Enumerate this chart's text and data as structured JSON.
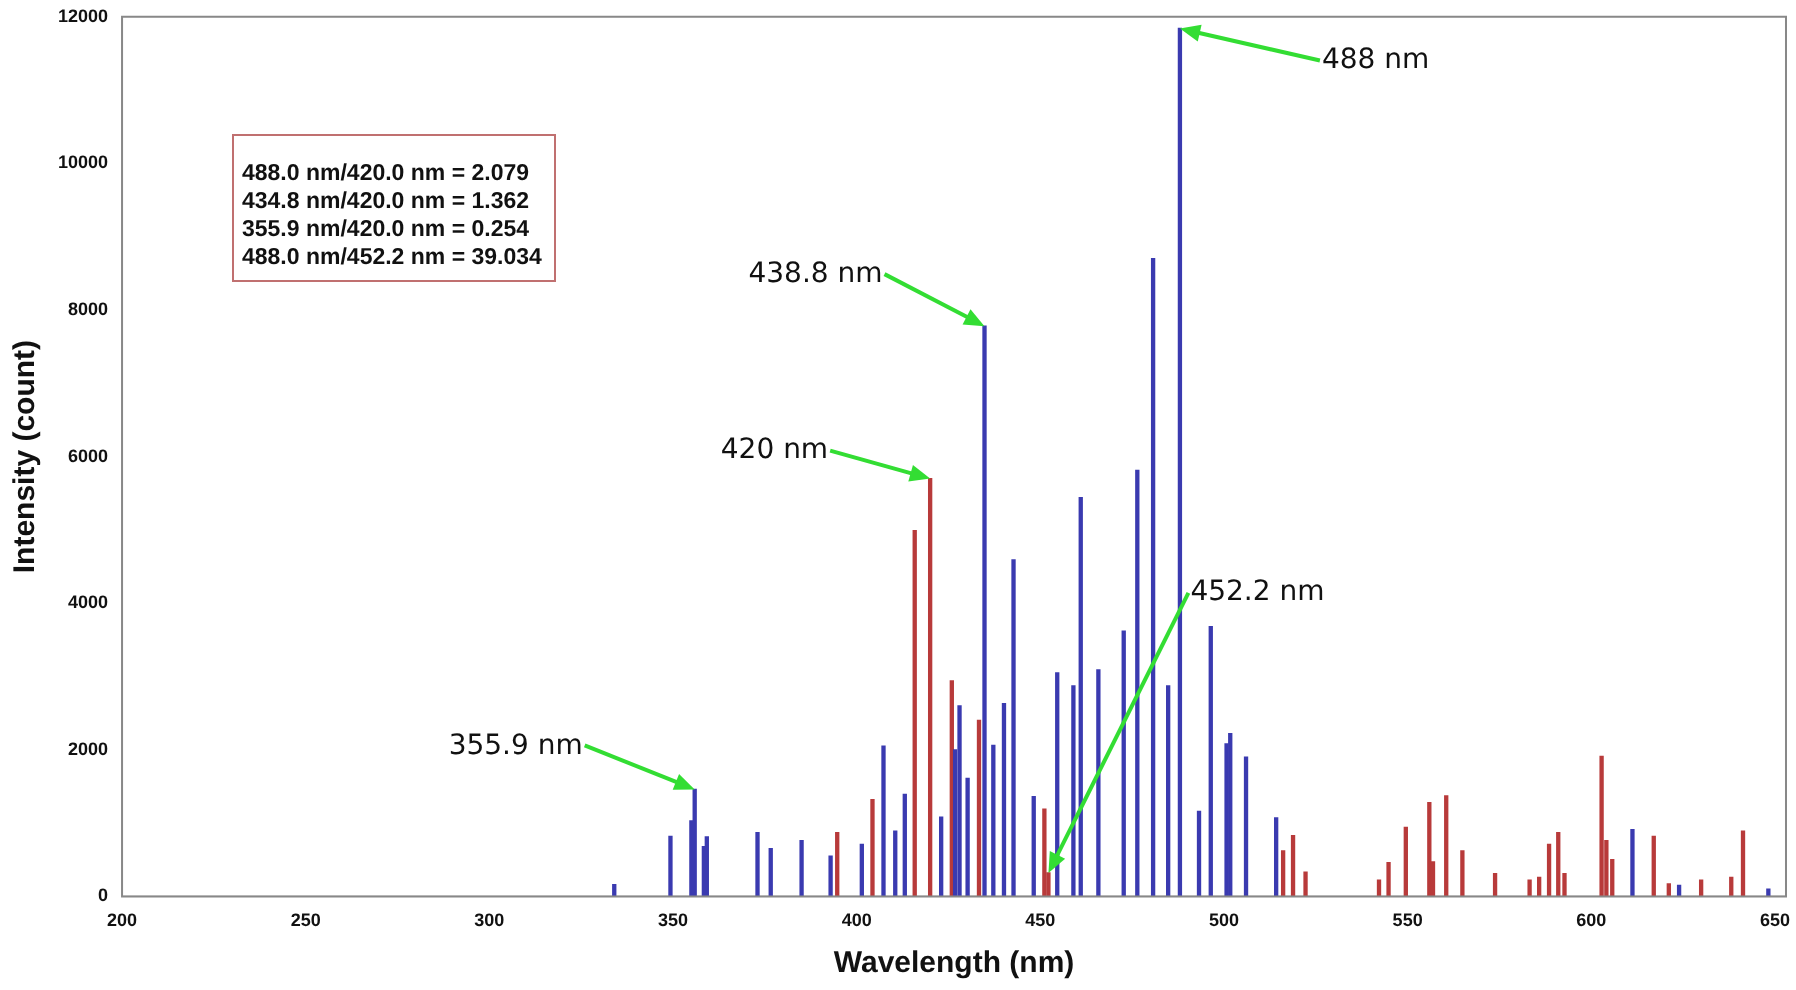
{
  "chart_data": {
    "type": "bar",
    "xlabel": "Wavelength (nm)",
    "ylabel": "Intensity (count)",
    "xlim": [
      200,
      653
    ],
    "xticks": [
      200,
      250,
      300,
      350,
      400,
      450,
      500,
      550,
      600,
      650
    ],
    "ylim": [
      0,
      12000
    ],
    "yticks": [
      0,
      2000,
      4000,
      6000,
      8000,
      10000,
      12000
    ],
    "grid": false,
    "legend": false,
    "series": [
      {
        "color": "#3a3ab0",
        "x": [
          334,
          349.3,
          355,
          355.9,
          358.4,
          359.2,
          373,
          376.6,
          385,
          392.9,
          401.4,
          407.3,
          410.5,
          413.1,
          423,
          426.8,
          428,
          430.2,
          434.8,
          437.2,
          440.1,
          442.7,
          448.2,
          454.6,
          459,
          461,
          465.8,
          472.7,
          473.4,
          476.4,
          480.7,
          484.8,
          488,
          493.2,
          496.4,
          500.7,
          501.7,
          506,
          514.2,
          611.2,
          623.9,
          648.2
        ],
        "values": [
          160,
          820,
          1030,
          1460,
          680,
          810,
          870,
          650,
          760,
          550,
          710,
          2050,
          890,
          1390,
          1080,
          2000,
          2600,
          1610,
          7780,
          2060,
          2630,
          4590,
          1360,
          3050,
          2870,
          5440,
          3090,
          3620,
          null,
          5810,
          8700,
          2870,
          11840,
          1160,
          3680,
          2080,
          2220,
          1900,
          1070,
          910,
          150,
          100
        ]
      },
      {
        "color": "#b83a3a",
        "x": [
          394.7,
          404.3,
          415.8,
          420,
          425.9,
          433.3,
          451.1,
          452.2,
          516.1,
          518.8,
          522.2,
          542.2,
          544.8,
          549.5,
          555.9,
          556.9,
          560.5,
          564.9,
          573.8,
          583.2,
          585.8,
          588.5,
          591,
          592.7,
          602.8,
          604.1,
          605.7,
          617,
          621.1,
          629.9,
          638.1,
          641.3
        ],
        "values": [
          870,
          1320,
          4990,
          5700,
          2940,
          2400,
          1190,
          320,
          620,
          830,
          330,
          220,
          460,
          940,
          1280,
          470,
          1370,
          620,
          310,
          220,
          260,
          710,
          870,
          310,
          1910,
          760,
          500,
          820,
          170,
          220,
          260,
          890
        ]
      }
    ],
    "annotations": [
      "488.0 nm/420.0 nm = 2.079",
      "434.8 nm/420.0 nm = 1.362",
      "355.9 nm/420.0 nm = 0.254",
      "488.0 nm/452.2 nm = 39.034",
      {
        "text": "488 nm",
        "x": 488,
        "y": 11840
      },
      {
        "text": "438.8 nm",
        "x": 434.8,
        "y": 7780
      },
      {
        "text": "420 nm",
        "x": 420,
        "y": 5700
      },
      {
        "text": "452.2 nm",
        "x": 452.2,
        "y": 320
      },
      {
        "text": "355.9 nm",
        "x": 355.9,
        "y": 1460
      }
    ]
  }
}
